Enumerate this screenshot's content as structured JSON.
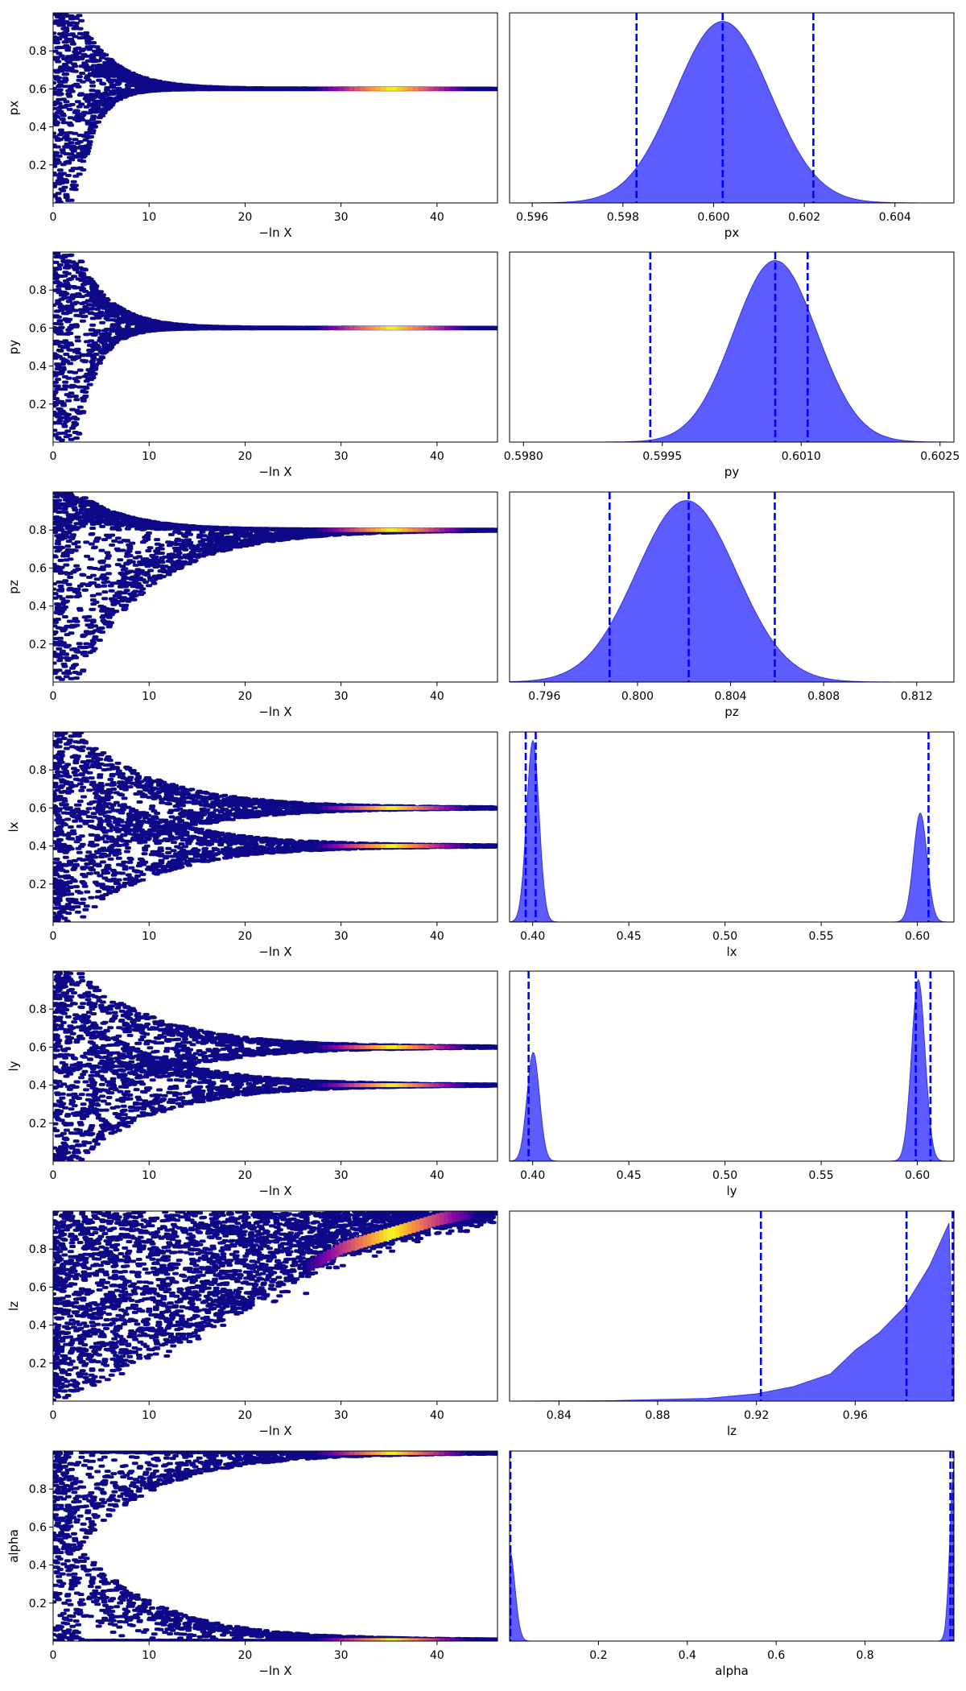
{
  "figure": {
    "colors": {
      "trace_base": "#0d0887",
      "trace_colormap": "plasma",
      "posterior_fill": "#5c5cff",
      "posterior_edge": "#3434d9",
      "quantile_lines": "#0000ff"
    }
  },
  "chart_data": [
    {
      "type": "scatter",
      "variant": "trace",
      "param": "px",
      "xlabel": "−ln X",
      "ylabel": "px",
      "xlim": [
        0,
        46.3
      ],
      "ylim": [
        0,
        1
      ],
      "xticks": [
        {
          "v": 0,
          "label": "0"
        },
        {
          "v": 10,
          "label": "10"
        },
        {
          "v": 20,
          "label": "20"
        },
        {
          "v": 30,
          "label": "30"
        },
        {
          "v": 40,
          "label": "40"
        }
      ],
      "yticks": [
        {
          "v": 0.2,
          "label": "0.2"
        },
        {
          "v": 0.4,
          "label": "0.4"
        },
        {
          "v": 0.6,
          "label": "0.6"
        },
        {
          "v": 0.8,
          "label": "0.8"
        }
      ],
      "centers": [
        0.6
      ],
      "converged_at": 20,
      "hi_extent": 0.4,
      "lo_extent": 0.6,
      "hi_decay": 0.28,
      "lo_decay": 0.55,
      "peak_x": 35
    },
    {
      "type": "area",
      "variant": "posterior",
      "param": "px",
      "xlabel": "px",
      "xlim": [
        0.5955,
        0.6053
      ],
      "xticks": [
        {
          "v": 0.596,
          "label": "0.596"
        },
        {
          "v": 0.598,
          "label": "0.598"
        },
        {
          "v": 0.6,
          "label": "0.600"
        },
        {
          "v": 0.602,
          "label": "0.602"
        },
        {
          "v": 0.604,
          "label": "0.604"
        }
      ],
      "peaks": [
        {
          "mu": 0.6002,
          "sigma": 0.00105,
          "amp": 1.0
        }
      ],
      "quantiles": [
        0.5983,
        0.6002,
        0.6022
      ]
    },
    {
      "type": "scatter",
      "variant": "trace",
      "param": "py",
      "xlabel": "−ln X",
      "ylabel": "py",
      "xlim": [
        0,
        46.3
      ],
      "ylim": [
        0,
        1
      ],
      "xticks": [
        {
          "v": 0,
          "label": "0"
        },
        {
          "v": 10,
          "label": "10"
        },
        {
          "v": 20,
          "label": "20"
        },
        {
          "v": 30,
          "label": "30"
        },
        {
          "v": 40,
          "label": "40"
        }
      ],
      "yticks": [
        {
          "v": 0.2,
          "label": "0.2"
        },
        {
          "v": 0.4,
          "label": "0.4"
        },
        {
          "v": 0.6,
          "label": "0.6"
        },
        {
          "v": 0.8,
          "label": "0.8"
        }
      ],
      "centers": [
        0.6
      ],
      "converged_at": 16,
      "hi_extent": 0.4,
      "lo_extent": 0.6,
      "hi_decay": 0.3,
      "lo_decay": 0.5,
      "peak_x": 35
    },
    {
      "type": "area",
      "variant": "posterior",
      "param": "py",
      "xlabel": "py",
      "xlim": [
        0.59785,
        0.60265
      ],
      "xticks": [
        {
          "v": 0.598,
          "label": "0.5980"
        },
        {
          "v": 0.5995,
          "label": "0.5995"
        },
        {
          "v": 0.601,
          "label": "0.6010"
        },
        {
          "v": 0.6025,
          "label": "0.6025"
        }
      ],
      "peaks": [
        {
          "mu": 0.60072,
          "sigma": 0.00045,
          "amp": 1.0
        }
      ],
      "quantiles": [
        0.59937,
        0.60072,
        0.60107
      ]
    },
    {
      "type": "scatter",
      "variant": "trace",
      "param": "pz",
      "xlabel": "−ln X",
      "ylabel": "pz",
      "xlim": [
        0,
        46.3
      ],
      "ylim": [
        0,
        1
      ],
      "xticks": [
        {
          "v": 0,
          "label": "0"
        },
        {
          "v": 10,
          "label": "10"
        },
        {
          "v": 20,
          "label": "20"
        },
        {
          "v": 30,
          "label": "30"
        },
        {
          "v": 40,
          "label": "40"
        }
      ],
      "yticks": [
        {
          "v": 0.2,
          "label": "0.2"
        },
        {
          "v": 0.4,
          "label": "0.4"
        },
        {
          "v": 0.6,
          "label": "0.6"
        },
        {
          "v": 0.8,
          "label": "0.8"
        }
      ],
      "centers": [
        0.8
      ],
      "converged_at": 24,
      "hi_extent": 0.2,
      "lo_extent": 0.8,
      "hi_decay": 0.2,
      "lo_decay": 0.13,
      "peak_x": 35
    },
    {
      "type": "area",
      "variant": "posterior",
      "param": "pz",
      "xlabel": "pz",
      "xlim": [
        0.7945,
        0.8136
      ],
      "xticks": [
        {
          "v": 0.796,
          "label": "0.796"
        },
        {
          "v": 0.8,
          "label": "0.800"
        },
        {
          "v": 0.804,
          "label": "0.804"
        },
        {
          "v": 0.808,
          "label": "0.808"
        },
        {
          "v": 0.812,
          "label": "0.812"
        }
      ],
      "peaks": [
        {
          "mu": 0.8021,
          "sigma": 0.00215,
          "amp": 1.0
        }
      ],
      "quantiles": [
        0.7988,
        0.8022,
        0.8059
      ]
    },
    {
      "type": "scatter",
      "variant": "trace",
      "param": "lx",
      "xlabel": "−ln X",
      "ylabel": "lx",
      "xlim": [
        0,
        46.3
      ],
      "ylim": [
        0,
        1
      ],
      "xticks": [
        {
          "v": 0,
          "label": "0"
        },
        {
          "v": 10,
          "label": "10"
        },
        {
          "v": 20,
          "label": "20"
        },
        {
          "v": 30,
          "label": "30"
        },
        {
          "v": 40,
          "label": "40"
        }
      ],
      "yticks": [
        {
          "v": 0.2,
          "label": "0.2"
        },
        {
          "v": 0.4,
          "label": "0.4"
        },
        {
          "v": 0.6,
          "label": "0.6"
        },
        {
          "v": 0.8,
          "label": "0.8"
        }
      ],
      "centers": [
        0.6,
        0.4
      ],
      "converged_at": 26,
      "hi_extent": 0.4,
      "lo_extent": 0.4,
      "hi_decay": 0.12,
      "lo_decay": 0.12,
      "peak_x": 35
    },
    {
      "type": "area",
      "variant": "posterior",
      "param": "lx",
      "xlabel": "lx",
      "xlim": [
        0.388,
        0.619
      ],
      "xticks": [
        {
          "v": 0.4,
          "label": "0.40"
        },
        {
          "v": 0.45,
          "label": "0.45"
        },
        {
          "v": 0.5,
          "label": "0.50"
        },
        {
          "v": 0.55,
          "label": "0.55"
        },
        {
          "v": 0.6,
          "label": "0.60"
        }
      ],
      "peaks": [
        {
          "mu": 0.4001,
          "sigma": 0.0032,
          "amp": 1.0
        },
        {
          "mu": 0.6015,
          "sigma": 0.0035,
          "amp": 0.6
        }
      ],
      "quantiles": [
        0.3964,
        0.4016,
        0.6058
      ]
    },
    {
      "type": "scatter",
      "variant": "trace",
      "param": "ly",
      "xlabel": "−ln X",
      "ylabel": "ly",
      "xlim": [
        0,
        46.3
      ],
      "ylim": [
        0,
        1
      ],
      "xticks": [
        {
          "v": 0,
          "label": "0"
        },
        {
          "v": 10,
          "label": "10"
        },
        {
          "v": 20,
          "label": "20"
        },
        {
          "v": 30,
          "label": "30"
        },
        {
          "v": 40,
          "label": "40"
        }
      ],
      "yticks": [
        {
          "v": 0.2,
          "label": "0.2"
        },
        {
          "v": 0.4,
          "label": "0.4"
        },
        {
          "v": 0.6,
          "label": "0.6"
        },
        {
          "v": 0.8,
          "label": "0.8"
        }
      ],
      "centers": [
        0.6,
        0.4
      ],
      "converged_at": 26,
      "hi_extent": 0.4,
      "lo_extent": 0.4,
      "hi_decay": 0.12,
      "lo_decay": 0.12,
      "peak_x": 35
    },
    {
      "type": "area",
      "variant": "posterior",
      "param": "ly",
      "xlabel": "ly",
      "xlim": [
        0.388,
        0.619
      ],
      "xticks": [
        {
          "v": 0.4,
          "label": "0.40"
        },
        {
          "v": 0.45,
          "label": "0.45"
        },
        {
          "v": 0.5,
          "label": "0.50"
        },
        {
          "v": 0.55,
          "label": "0.55"
        },
        {
          "v": 0.6,
          "label": "0.60"
        }
      ],
      "peaks": [
        {
          "mu": 0.4003,
          "sigma": 0.0032,
          "amp": 0.6
        },
        {
          "mu": 0.6005,
          "sigma": 0.0035,
          "amp": 1.0
        }
      ],
      "quantiles": [
        0.3979,
        0.5992,
        0.6068
      ]
    },
    {
      "type": "scatter",
      "variant": "trace",
      "param": "lz",
      "xlabel": "−ln X",
      "ylabel": "lz",
      "xlim": [
        0,
        46.3
      ],
      "ylim": [
        0,
        1
      ],
      "xticks": [
        {
          "v": 0,
          "label": "0"
        },
        {
          "v": 10,
          "label": "10"
        },
        {
          "v": 20,
          "label": "20"
        },
        {
          "v": 30,
          "label": "30"
        },
        {
          "v": 40,
          "label": "40"
        }
      ],
      "yticks": [
        {
          "v": 0.2,
          "label": "0.2"
        },
        {
          "v": 0.4,
          "label": "0.4"
        },
        {
          "v": 0.6,
          "label": "0.6"
        },
        {
          "v": 0.8,
          "label": "0.8"
        }
      ],
      "lower_bound": [
        {
          "x": 0,
          "y": 0.02
        },
        {
          "x": 10,
          "y": 0.25
        },
        {
          "x": 20,
          "y": 0.5
        },
        {
          "x": 30,
          "y": 0.78
        },
        {
          "x": 40,
          "y": 0.93
        },
        {
          "x": 46,
          "y": 0.99
        }
      ],
      "peak_x": 35
    },
    {
      "type": "area",
      "variant": "posterior",
      "param": "lz",
      "xlabel": "lz",
      "xlim": [
        0.82,
        1.0
      ],
      "xticks": [
        {
          "v": 0.84,
          "label": "0.84"
        },
        {
          "v": 0.88,
          "label": "0.88"
        },
        {
          "v": 0.92,
          "label": "0.92"
        },
        {
          "v": 0.96,
          "label": "0.96"
        }
      ],
      "density": [
        {
          "x": 0.82,
          "y": 0.0
        },
        {
          "x": 0.86,
          "y": 0.002
        },
        {
          "x": 0.9,
          "y": 0.015
        },
        {
          "x": 0.92,
          "y": 0.04
        },
        {
          "x": 0.935,
          "y": 0.08
        },
        {
          "x": 0.95,
          "y": 0.15
        },
        {
          "x": 0.96,
          "y": 0.28
        },
        {
          "x": 0.97,
          "y": 0.38
        },
        {
          "x": 0.98,
          "y": 0.52
        },
        {
          "x": 0.99,
          "y": 0.74
        },
        {
          "x": 0.998,
          "y": 0.98
        },
        {
          "x": 1.0,
          "y": 0.0
        }
      ],
      "quantiles": [
        0.9218,
        0.9808,
        0.9995
      ]
    },
    {
      "type": "scatter",
      "variant": "trace",
      "param": "alpha",
      "xlabel": "−ln X",
      "ylabel": "alpha",
      "xlim": [
        0,
        46.3
      ],
      "ylim": [
        0,
        1
      ],
      "xticks": [
        {
          "v": 0,
          "label": "0"
        },
        {
          "v": 10,
          "label": "10"
        },
        {
          "v": 20,
          "label": "20"
        },
        {
          "v": 30,
          "label": "30"
        },
        {
          "v": 40,
          "label": "40"
        }
      ],
      "yticks": [
        {
          "v": 0.2,
          "label": "0.2"
        },
        {
          "v": 0.4,
          "label": "0.4"
        },
        {
          "v": 0.6,
          "label": "0.6"
        },
        {
          "v": 0.8,
          "label": "0.8"
        }
      ],
      "centers": [
        0.99,
        0.005
      ],
      "converged_at": 28,
      "hi_extent": 0.5,
      "lo_extent": 0.5,
      "hi_decay": 0.12,
      "lo_decay": 0.12,
      "peak_x": 35
    },
    {
      "type": "area",
      "variant": "posterior",
      "param": "alpha",
      "xlabel": "alpha",
      "xlim": [
        0.0,
        1.0
      ],
      "xticks": [
        {
          "v": 0.2,
          "label": "0.2"
        },
        {
          "v": 0.4,
          "label": "0.4"
        },
        {
          "v": 0.6,
          "label": "0.6"
        },
        {
          "v": 0.8,
          "label": "0.8"
        }
      ],
      "peaks": [
        {
          "mu": 0.0,
          "sigma": 0.012,
          "amp": 0.5
        },
        {
          "mu": 1.0,
          "sigma": 0.009,
          "amp": 0.95
        }
      ],
      "quantiles": [
        0.0,
        0.992,
        0.998
      ]
    }
  ]
}
